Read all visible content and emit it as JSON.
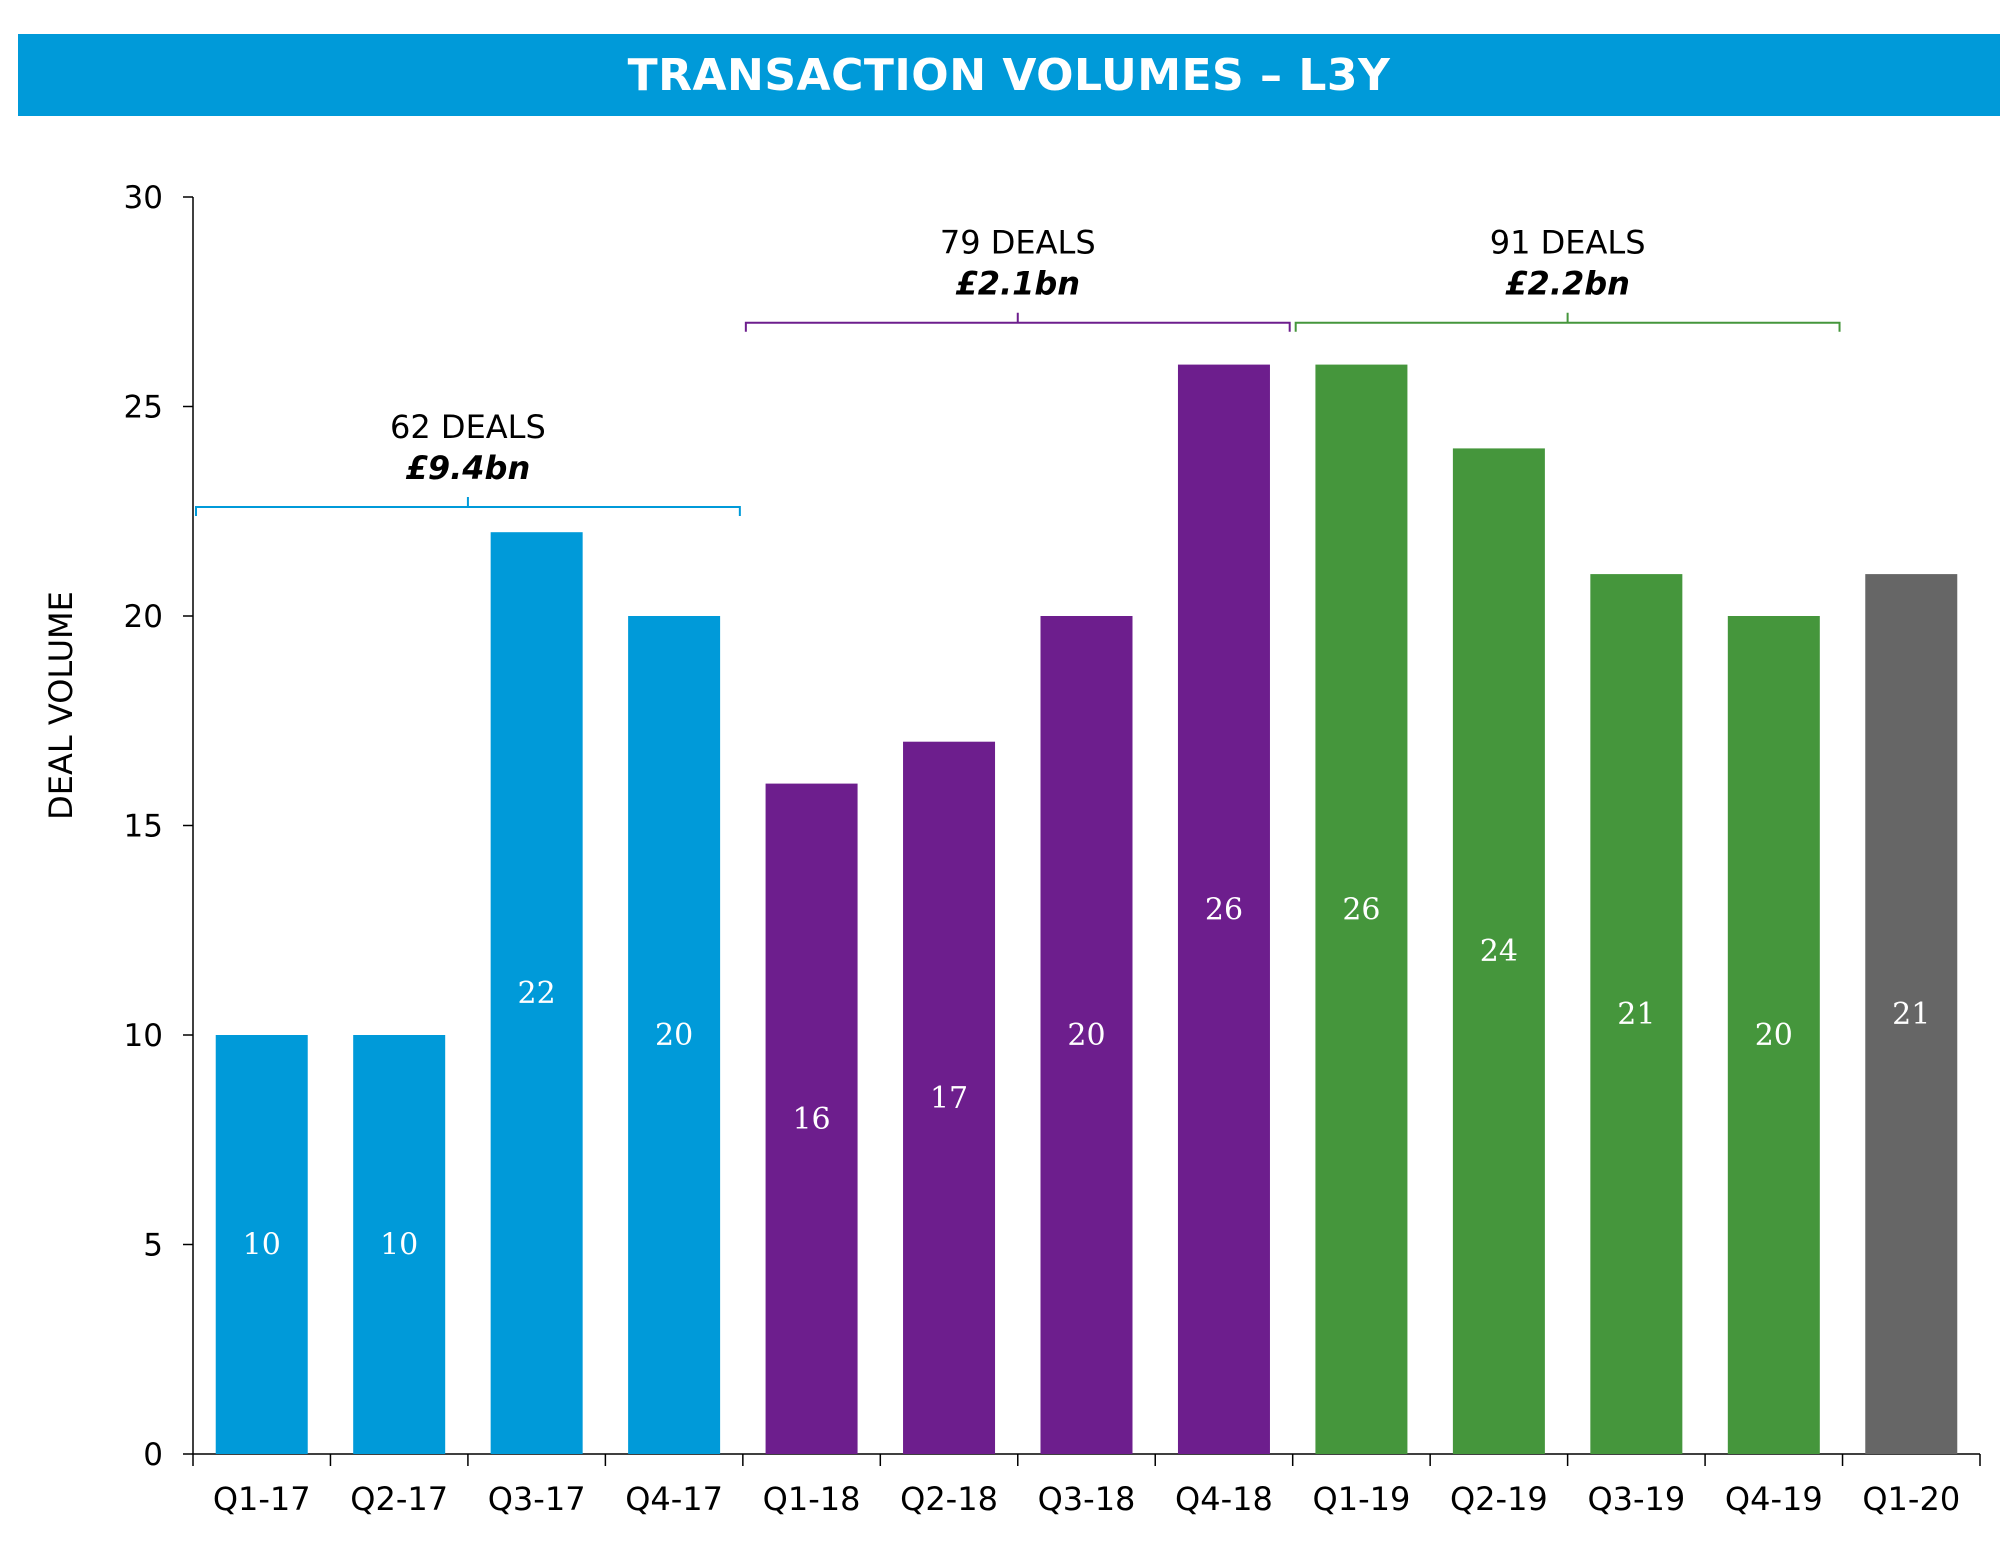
{
  "header": {
    "title": "TRANSACTION VOLUMES – L3Y"
  },
  "chart_data": {
    "type": "bar",
    "title": "TRANSACTION VOLUMES – L3Y",
    "xlabel": "",
    "ylabel": "DEAL VOLUME",
    "ylim": [
      0,
      30
    ],
    "yticks": [
      0,
      5,
      10,
      15,
      20,
      25,
      30
    ],
    "grid": false,
    "categories": [
      "Q1-17",
      "Q2-17",
      "Q3-17",
      "Q4-17",
      "Q1-18",
      "Q2-18",
      "Q3-18",
      "Q4-18",
      "Q1-19",
      "Q2-19",
      "Q3-19",
      "Q4-19",
      "Q1-20"
    ],
    "values": [
      10,
      10,
      22,
      20,
      16,
      17,
      20,
      26,
      26,
      24,
      21,
      20,
      21
    ],
    "bar_colors": [
      "#009ad9",
      "#009ad9",
      "#009ad9",
      "#009ad9",
      "#6d1e8d",
      "#6d1e8d",
      "#6d1e8d",
      "#6d1e8d",
      "#45963c",
      "#45963c",
      "#45963c",
      "#45963c",
      "#666666"
    ],
    "data_labels": [
      "10",
      "10",
      "22",
      "20",
      "16",
      "17",
      "20",
      "26",
      "26",
      "24",
      "21",
      "20",
      "21"
    ],
    "annotations": [
      {
        "deals": "62 DEALS",
        "value": "£9.4bn",
        "from_index": 0,
        "to_index": 3,
        "bracket_y": 22.6,
        "color": "#009ad9"
      },
      {
        "deals": "79 DEALS",
        "value": "£2.1bn",
        "from_index": 4,
        "to_index": 7,
        "bracket_y": 27.0,
        "color": "#6d1e8d"
      },
      {
        "deals": "91 DEALS",
        "value": "£2.2bn",
        "from_index": 8,
        "to_index": 11,
        "bracket_y": 27.0,
        "color": "#45963c"
      }
    ]
  }
}
